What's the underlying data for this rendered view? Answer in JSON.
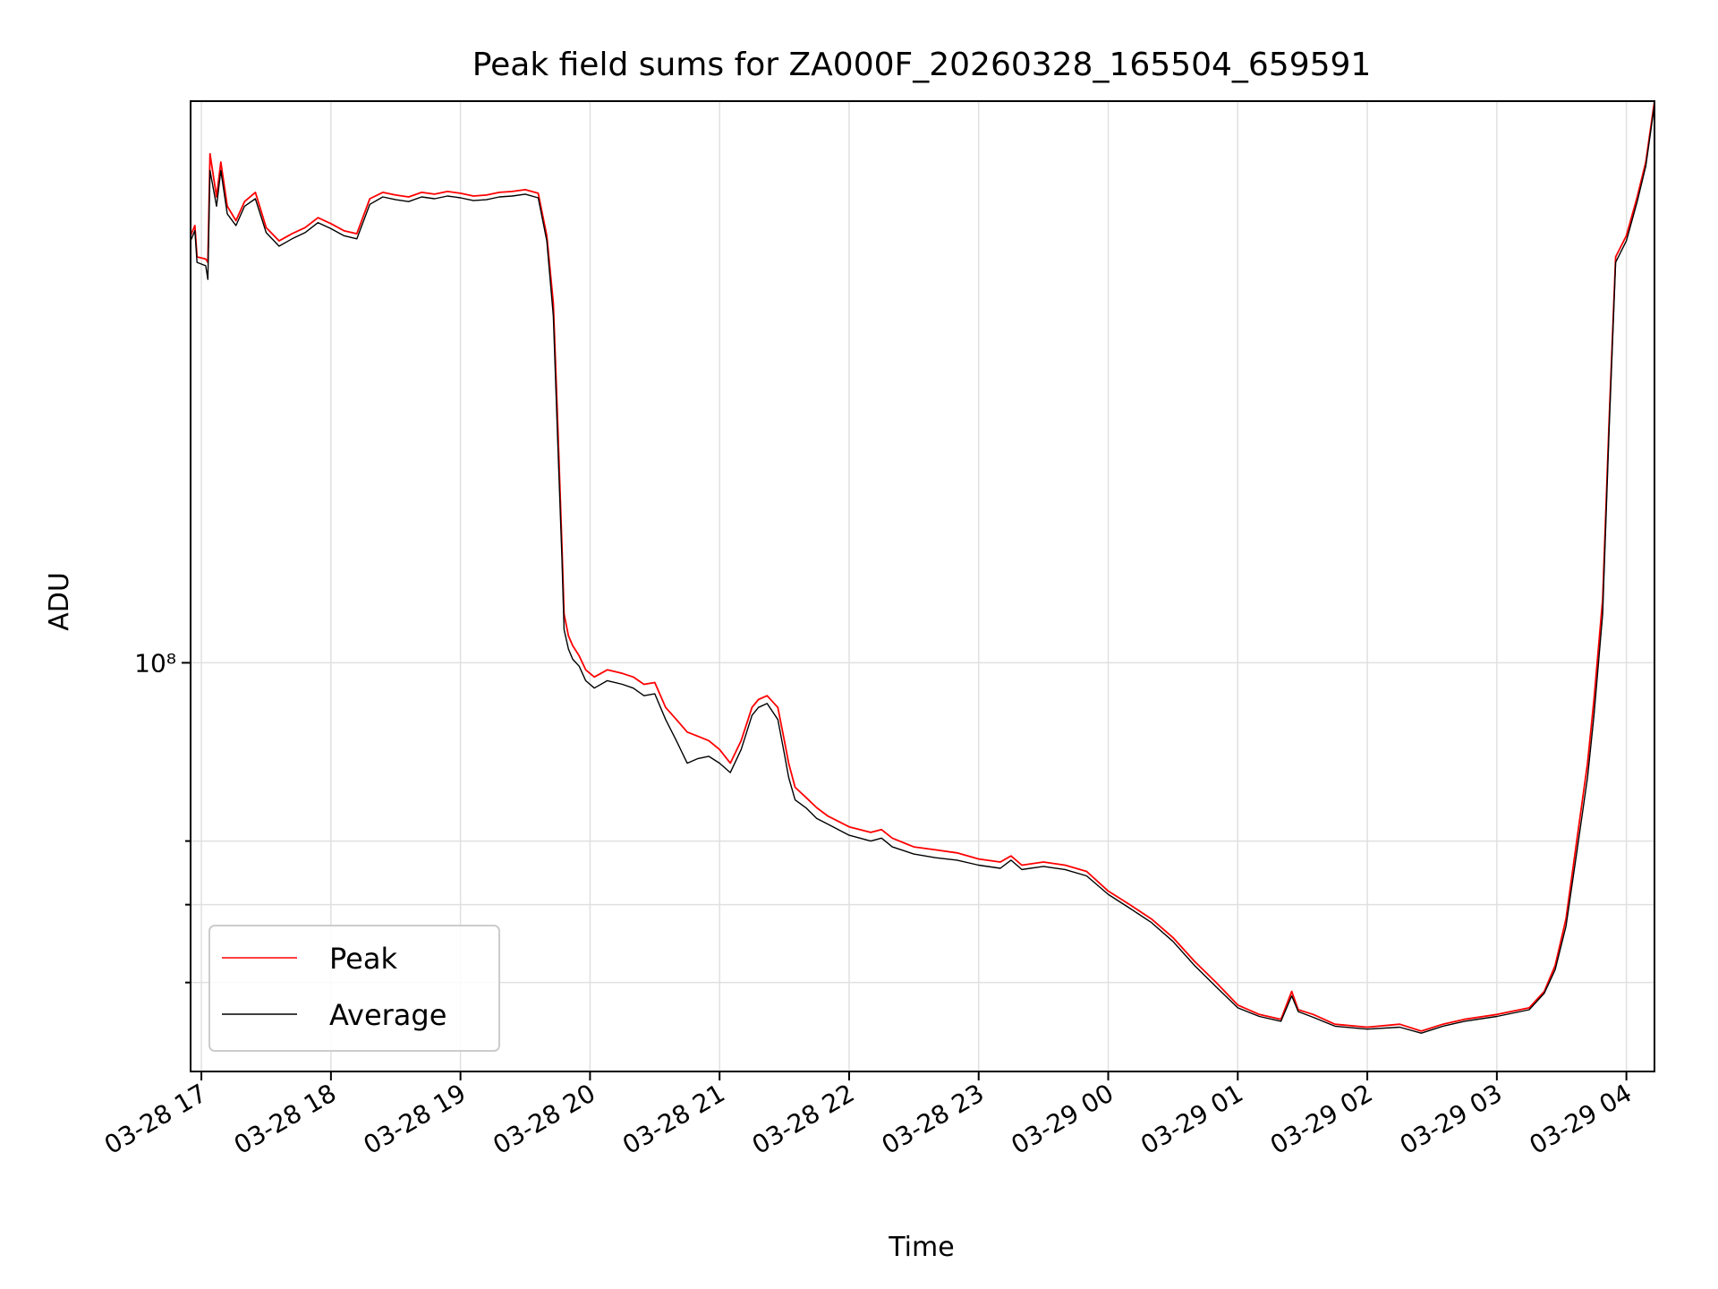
{
  "chart_data": {
    "type": "line",
    "title": "Peak field sums for ZA000F_20260328_165504_659591",
    "xlabel": "Time",
    "ylabel": "ADU",
    "yscale": "log",
    "ylim": [
      31000000,
      500000000
    ],
    "xlim": [
      "2026-03-28 16:55",
      "2026-03-29 04:13"
    ],
    "grid": true,
    "legend_position": "lower-left",
    "x_ticks": [
      "03-28 17",
      "03-28 18",
      "03-28 19",
      "03-28 20",
      "03-28 21",
      "03-28 22",
      "03-28 23",
      "03-29 00",
      "03-29 01",
      "03-29 02",
      "03-29 03",
      "03-29 04"
    ],
    "x_tick_times": [
      "2026-03-28 17:00",
      "2026-03-28 18:00",
      "2026-03-28 19:00",
      "2026-03-28 20:00",
      "2026-03-28 21:00",
      "2026-03-28 22:00",
      "2026-03-28 23:00",
      "2026-03-29 00:00",
      "2026-03-29 01:00",
      "2026-03-29 02:00",
      "2026-03-29 03:00",
      "2026-03-29 04:00"
    ],
    "y_ticks": [
      {
        "value": 100000000,
        "label": "10⁸"
      },
      {
        "value": 40000000,
        "label": ""
      },
      {
        "value": 50000000,
        "label": ""
      },
      {
        "value": 60000000,
        "label": ""
      }
    ],
    "series": [
      {
        "name": "Peak",
        "color": "#ff0000",
        "x": [
          "2026-03-28 16:55",
          "2026-03-28 16:57",
          "2026-03-28 16:58",
          "2026-03-28 17:02",
          "2026-03-28 17:03",
          "2026-03-28 17:04",
          "2026-03-28 17:07",
          "2026-03-28 17:09",
          "2026-03-28 17:12",
          "2026-03-28 17:16",
          "2026-03-28 17:20",
          "2026-03-28 17:25",
          "2026-03-28 17:30",
          "2026-03-28 17:36",
          "2026-03-28 17:42",
          "2026-03-28 17:48",
          "2026-03-28 17:54",
          "2026-03-28 18:00",
          "2026-03-28 18:06",
          "2026-03-28 18:12",
          "2026-03-28 18:18",
          "2026-03-28 18:24",
          "2026-03-28 18:30",
          "2026-03-28 18:36",
          "2026-03-28 18:42",
          "2026-03-28 18:48",
          "2026-03-28 18:54",
          "2026-03-28 19:00",
          "2026-03-28 19:06",
          "2026-03-28 19:12",
          "2026-03-28 19:18",
          "2026-03-28 19:24",
          "2026-03-28 19:30",
          "2026-03-28 19:36",
          "2026-03-28 19:40",
          "2026-03-28 19:43",
          "2026-03-28 19:45",
          "2026-03-28 19:47",
          "2026-03-28 19:48",
          "2026-03-28 19:50",
          "2026-03-28 19:52",
          "2026-03-28 19:55",
          "2026-03-28 19:58",
          "2026-03-28 20:02",
          "2026-03-28 20:08",
          "2026-03-28 20:15",
          "2026-03-28 20:20",
          "2026-03-28 20:25",
          "2026-03-28 20:30",
          "2026-03-28 20:35",
          "2026-03-28 20:40",
          "2026-03-28 20:45",
          "2026-03-28 20:50",
          "2026-03-28 20:55",
          "2026-03-28 21:00",
          "2026-03-28 21:05",
          "2026-03-28 21:10",
          "2026-03-28 21:15",
          "2026-03-28 21:18",
          "2026-03-28 21:22",
          "2026-03-28 21:27",
          "2026-03-28 21:30",
          "2026-03-28 21:32",
          "2026-03-28 21:35",
          "2026-03-28 21:40",
          "2026-03-28 21:45",
          "2026-03-28 21:50",
          "2026-03-28 22:00",
          "2026-03-28 22:10",
          "2026-03-28 22:15",
          "2026-03-28 22:20",
          "2026-03-28 22:30",
          "2026-03-28 22:40",
          "2026-03-28 22:50",
          "2026-03-28 23:00",
          "2026-03-28 23:10",
          "2026-03-28 23:15",
          "2026-03-28 23:20",
          "2026-03-28 23:30",
          "2026-03-28 23:40",
          "2026-03-28 23:50",
          "2026-03-29 00:00",
          "2026-03-29 00:10",
          "2026-03-29 00:20",
          "2026-03-29 00:30",
          "2026-03-29 00:40",
          "2026-03-29 00:50",
          "2026-03-29 01:00",
          "2026-03-29 01:10",
          "2026-03-29 01:20",
          "2026-03-29 01:25",
          "2026-03-29 01:28",
          "2026-03-29 01:35",
          "2026-03-29 01:45",
          "2026-03-29 02:00",
          "2026-03-29 02:15",
          "2026-03-29 02:25",
          "2026-03-29 02:35",
          "2026-03-29 02:45",
          "2026-03-29 03:00",
          "2026-03-29 03:15",
          "2026-03-29 03:22",
          "2026-03-29 03:27",
          "2026-03-29 03:32",
          "2026-03-29 03:37",
          "2026-03-29 03:42",
          "2026-03-29 03:45",
          "2026-03-29 03:49",
          "2026-03-29 03:52",
          "2026-03-29 03:55",
          "2026-03-29 04:00",
          "2026-03-29 04:05",
          "2026-03-29 04:09",
          "2026-03-29 04:13"
        ],
        "y": [
          340000000,
          350000000,
          320000000,
          318000000,
          315000000,
          430000000,
          380000000,
          420000000,
          370000000,
          355000000,
          375000000,
          385000000,
          348000000,
          335000000,
          342000000,
          348000000,
          358000000,
          352000000,
          345000000,
          342000000,
          378000000,
          385000000,
          382000000,
          380000000,
          385000000,
          383000000,
          386000000,
          384000000,
          381000000,
          382000000,
          385000000,
          386000000,
          388000000,
          384000000,
          340000000,
          280000000,
          200000000,
          140000000,
          115000000,
          108000000,
          105000000,
          102000000,
          98000000,
          96000000,
          98000000,
          97000000,
          96000000,
          94000000,
          94500000,
          88000000,
          85000000,
          82000000,
          81000000,
          80000000,
          78000000,
          75000000,
          80000000,
          88000000,
          90000000,
          91000000,
          88000000,
          80000000,
          75000000,
          70000000,
          68000000,
          66000000,
          64500000,
          62500000,
          61500000,
          62000000,
          60500000,
          59000000,
          58500000,
          58000000,
          57000000,
          56500000,
          57500000,
          56000000,
          56500000,
          56000000,
          55000000,
          52000000,
          50000000,
          48000000,
          45500000,
          42500000,
          40000000,
          37500000,
          36500000,
          36000000,
          39000000,
          37000000,
          36500000,
          35500000,
          35200000,
          35500000,
          34800000,
          35500000,
          36000000,
          36500000,
          37200000,
          39000000,
          42000000,
          48000000,
          60000000,
          75000000,
          90000000,
          120000000,
          200000000,
          320000000,
          340000000,
          380000000,
          420000000,
          500000000
        ]
      },
      {
        "name": "Average",
        "color": "#000000",
        "x": [
          "2026-03-28 16:55",
          "2026-03-28 16:57",
          "2026-03-28 16:58",
          "2026-03-28 17:02",
          "2026-03-28 17:03",
          "2026-03-28 17:04",
          "2026-03-28 17:07",
          "2026-03-28 17:09",
          "2026-03-28 17:12",
          "2026-03-28 17:16",
          "2026-03-28 17:20",
          "2026-03-28 17:25",
          "2026-03-28 17:30",
          "2026-03-28 17:36",
          "2026-03-28 17:42",
          "2026-03-28 17:48",
          "2026-03-28 17:54",
          "2026-03-28 18:00",
          "2026-03-28 18:06",
          "2026-03-28 18:12",
          "2026-03-28 18:18",
          "2026-03-28 18:24",
          "2026-03-28 18:30",
          "2026-03-28 18:36",
          "2026-03-28 18:42",
          "2026-03-28 18:48",
          "2026-03-28 18:54",
          "2026-03-28 19:00",
          "2026-03-28 19:06",
          "2026-03-28 19:12",
          "2026-03-28 19:18",
          "2026-03-28 19:24",
          "2026-03-28 19:30",
          "2026-03-28 19:36",
          "2026-03-28 19:40",
          "2026-03-28 19:43",
          "2026-03-28 19:45",
          "2026-03-28 19:47",
          "2026-03-28 19:48",
          "2026-03-28 19:50",
          "2026-03-28 19:52",
          "2026-03-28 19:55",
          "2026-03-28 19:58",
          "2026-03-28 20:02",
          "2026-03-28 20:08",
          "2026-03-28 20:15",
          "2026-03-28 20:20",
          "2026-03-28 20:25",
          "2026-03-28 20:30",
          "2026-03-28 20:35",
          "2026-03-28 20:40",
          "2026-03-28 20:45",
          "2026-03-28 20:50",
          "2026-03-28 20:55",
          "2026-03-28 21:00",
          "2026-03-28 21:05",
          "2026-03-28 21:10",
          "2026-03-28 21:15",
          "2026-03-28 21:18",
          "2026-03-28 21:22",
          "2026-03-28 21:27",
          "2026-03-28 21:30",
          "2026-03-28 21:32",
          "2026-03-28 21:35",
          "2026-03-28 21:40",
          "2026-03-28 21:45",
          "2026-03-28 21:50",
          "2026-03-28 22:00",
          "2026-03-28 22:10",
          "2026-03-28 22:15",
          "2026-03-28 22:20",
          "2026-03-28 22:30",
          "2026-03-28 22:40",
          "2026-03-28 22:50",
          "2026-03-28 23:00",
          "2026-03-28 23:10",
          "2026-03-28 23:15",
          "2026-03-28 23:20",
          "2026-03-28 23:30",
          "2026-03-28 23:40",
          "2026-03-28 23:50",
          "2026-03-29 00:00",
          "2026-03-29 00:10",
          "2026-03-29 00:20",
          "2026-03-29 00:30",
          "2026-03-29 00:40",
          "2026-03-29 00:50",
          "2026-03-29 01:00",
          "2026-03-29 01:10",
          "2026-03-29 01:20",
          "2026-03-29 01:25",
          "2026-03-29 01:28",
          "2026-03-29 01:35",
          "2026-03-29 01:45",
          "2026-03-29 02:00",
          "2026-03-29 02:15",
          "2026-03-29 02:25",
          "2026-03-29 02:35",
          "2026-03-29 02:45",
          "2026-03-29 03:00",
          "2026-03-29 03:15",
          "2026-03-29 03:22",
          "2026-03-29 03:27",
          "2026-03-29 03:32",
          "2026-03-29 03:37",
          "2026-03-29 03:42",
          "2026-03-29 03:45",
          "2026-03-29 03:49",
          "2026-03-29 03:52",
          "2026-03-29 03:55",
          "2026-03-29 04:00",
          "2026-03-29 04:05",
          "2026-03-29 04:09",
          "2026-03-29 04:13"
        ],
        "y": [
          335000000,
          345000000,
          315000000,
          312000000,
          300000000,
          410000000,
          370000000,
          410000000,
          362000000,
          350000000,
          370000000,
          378000000,
          343000000,
          330000000,
          337000000,
          343000000,
          353000000,
          347000000,
          340000000,
          337000000,
          372000000,
          380000000,
          377000000,
          375000000,
          380000000,
          378000000,
          381000000,
          379000000,
          376000000,
          377000000,
          380000000,
          381000000,
          383000000,
          379000000,
          335000000,
          270000000,
          190000000,
          135000000,
          110000000,
          104000000,
          101000000,
          99000000,
          95000000,
          93000000,
          95000000,
          94000000,
          93000000,
          91000000,
          91500000,
          85000000,
          80000000,
          75000000,
          76000000,
          76500000,
          75000000,
          73000000,
          78000000,
          86000000,
          88000000,
          89000000,
          85000000,
          77000000,
          72000000,
          67500000,
          66000000,
          64000000,
          63000000,
          61000000,
          60000000,
          60500000,
          59000000,
          57800000,
          57200000,
          56800000,
          56000000,
          55500000,
          56800000,
          55300000,
          55800000,
          55300000,
          54300000,
          51500000,
          49500000,
          47500000,
          45000000,
          42000000,
          39500000,
          37200000,
          36300000,
          35800000,
          38500000,
          36800000,
          36200000,
          35300000,
          35000000,
          35200000,
          34600000,
          35300000,
          35800000,
          36300000,
          37000000,
          38800000,
          41500000,
          47000000,
          58000000,
          72000000,
          86000000,
          115000000,
          195000000,
          315000000,
          335000000,
          375000000,
          415000000,
          495000000
        ]
      }
    ]
  }
}
